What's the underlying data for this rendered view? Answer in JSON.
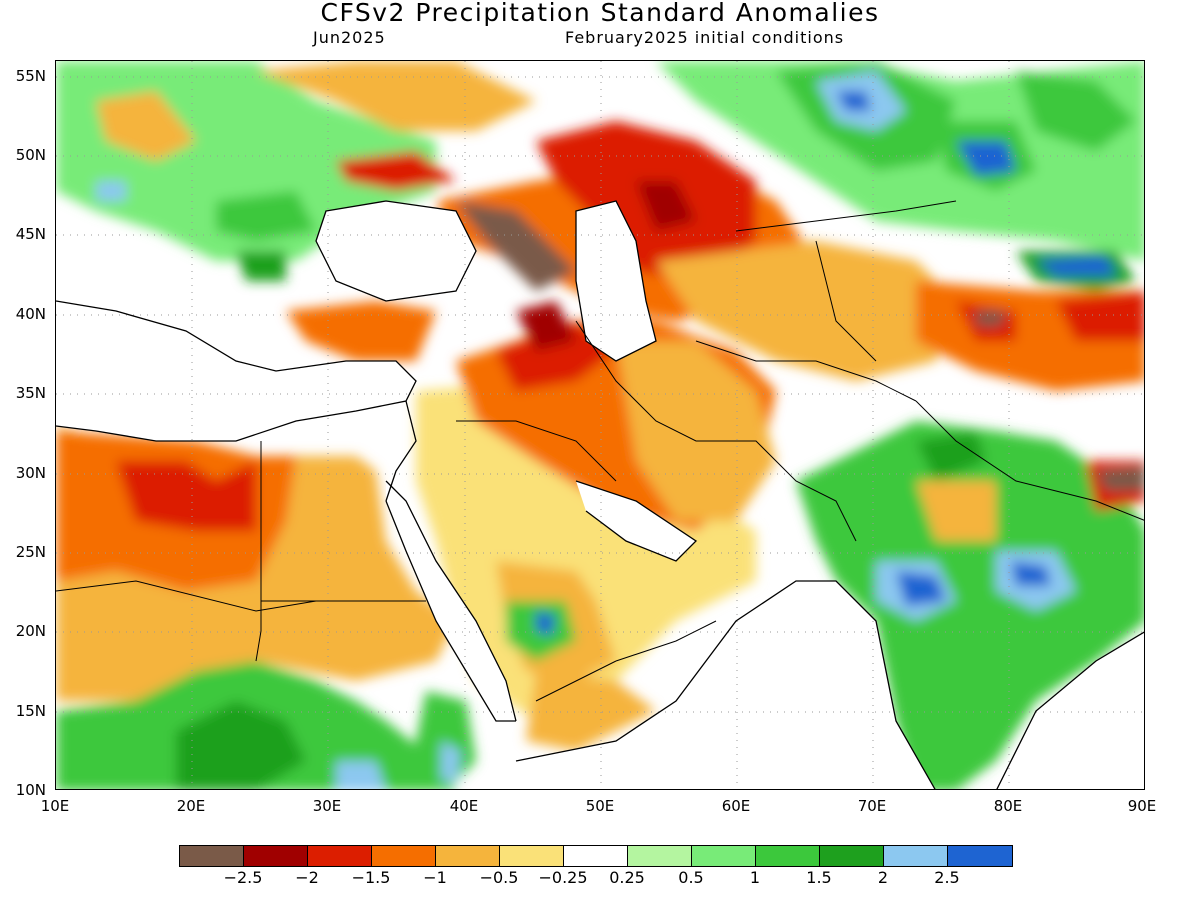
{
  "title": "CFSv2 Precipitation Standard Anomalies",
  "subtitle_left": "Jun2025",
  "subtitle_right": "February2025 initial conditions",
  "lat_labels": [
    "55N",
    "50N",
    "45N",
    "40N",
    "35N",
    "30N",
    "25N",
    "20N",
    "15N",
    "10N"
  ],
  "lon_labels": [
    "10E",
    "20E",
    "30E",
    "40E",
    "50E",
    "60E",
    "70E",
    "80E",
    "90E"
  ],
  "legend": {
    "colors": [
      "#7a5a48",
      "#a00000",
      "#dc1e00",
      "#f56e00",
      "#f5b43c",
      "#fae178",
      "#ffffff",
      "#b4f5a0",
      "#78eb78",
      "#3cc83c",
      "#1ea01e",
      "#8cc8f0",
      "#1e64d2"
    ],
    "labels": [
      "-2.5",
      "-2",
      "-1.5",
      "-1",
      "-0.5",
      "-0.25",
      "0.25",
      "0.5",
      "1",
      "1.5",
      "2",
      "2.5"
    ]
  },
  "map": {
    "lon_range": [
      10,
      90
    ],
    "lat_range": [
      10,
      56
    ],
    "grid": true
  }
}
